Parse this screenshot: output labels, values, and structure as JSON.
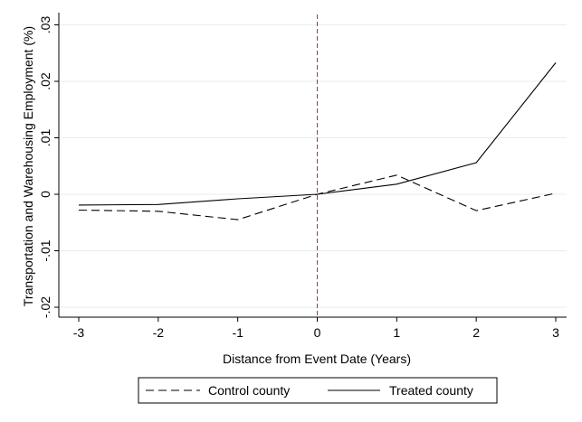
{
  "chart_data": {
    "type": "line",
    "title": "",
    "xlabel": "Distance from Event Date (Years)",
    "ylabel": "Transportation and Warehousing Employment (%)",
    "x": [
      -3,
      -2,
      -1,
      0,
      1,
      2,
      3
    ],
    "xlim": [
      -3,
      3
    ],
    "ylim": [
      -0.022,
      0.031
    ],
    "xticks": [
      -3,
      -2,
      -1,
      0,
      1,
      2,
      3
    ],
    "xtick_labels": [
      "-3",
      "-2",
      "-1",
      "0",
      "1",
      "2",
      "3"
    ],
    "yticks": [
      -0.02,
      -0.01,
      0,
      0.01,
      0.02,
      0.03
    ],
    "ytick_labels": [
      "-.02",
      "-.01",
      "0",
      ".01",
      ".02",
      ".03"
    ],
    "grid": "horizontal",
    "reference_line": {
      "x": 0,
      "color": "#b0305a",
      "style": "dashed"
    },
    "legend_position": "bottom",
    "series": [
      {
        "name": "Control county",
        "style": "dashed",
        "color": "#000000",
        "values": [
          -0.0028,
          -0.003,
          -0.0045,
          0.0,
          0.0034,
          -0.0029,
          0.0002
        ]
      },
      {
        "name": "Treated county",
        "style": "solid",
        "color": "#000000",
        "values": [
          -0.0019,
          -0.0018,
          -0.0008,
          0.0,
          0.0018,
          0.0056,
          0.0233
        ]
      }
    ]
  }
}
